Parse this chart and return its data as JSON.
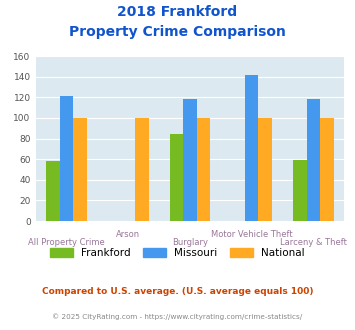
{
  "title_line1": "2018 Frankford",
  "title_line2": "Property Crime Comparison",
  "categories": [
    "All Property Crime",
    "Arson",
    "Burglary",
    "Motor Vehicle Theft",
    "Larceny & Theft"
  ],
  "series": {
    "Frankford": [
      58,
      0,
      84,
      0,
      59
    ],
    "Missouri": [
      121,
      0,
      118,
      142,
      118
    ],
    "National": [
      100,
      100,
      100,
      100,
      100
    ]
  },
  "colors": {
    "Frankford": "#77bb22",
    "Missouri": "#4499ee",
    "National": "#ffaa22"
  },
  "ylim": [
    0,
    160
  ],
  "yticks": [
    0,
    20,
    40,
    60,
    80,
    100,
    120,
    140,
    160
  ],
  "background_color": "#dce9f0",
  "title_color": "#1155cc",
  "xlabel_color_even": "#997799",
  "xlabel_color_odd": "#997799",
  "footnote1": "Compared to U.S. average. (U.S. average equals 100)",
  "footnote2": "© 2025 CityRating.com - https://www.cityrating.com/crime-statistics/",
  "footnote1_color": "#cc4400",
  "footnote2_color": "#888888",
  "footnote2_url_color": "#4488cc"
}
